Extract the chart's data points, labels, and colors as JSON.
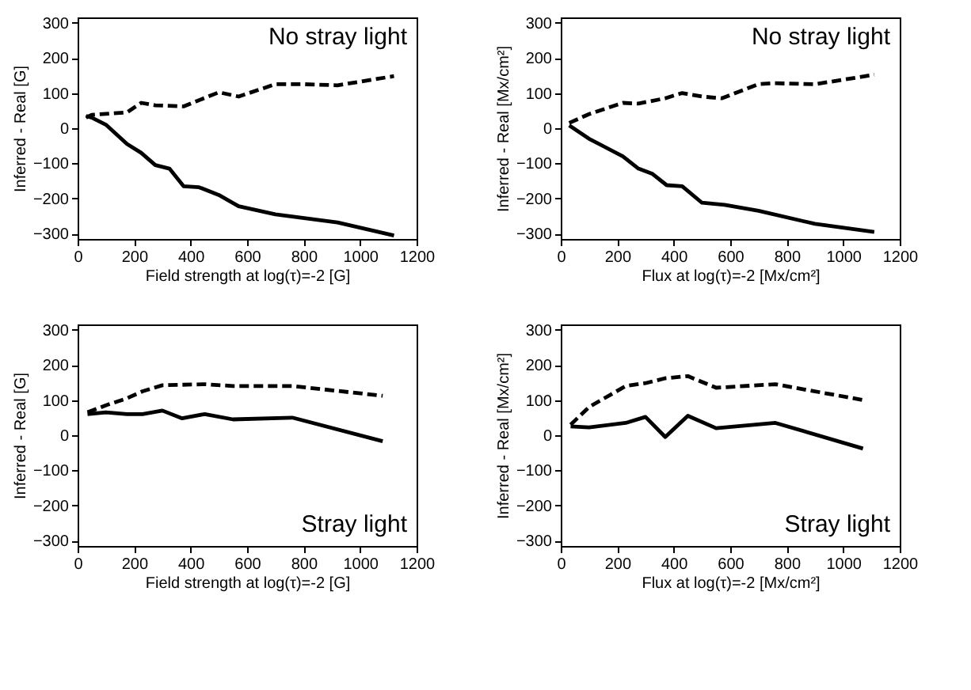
{
  "chart_data": [
    {
      "type": "line",
      "xlabel": "Field strength at log(τ)=-2 [G]",
      "ylabel": "Inferred - Real [G]",
      "annotations": [
        "No stray light"
      ],
      "xlim": [
        0,
        1200
      ],
      "xticks": [
        0,
        200,
        400,
        600,
        800,
        1000,
        1200
      ],
      "ylim": [
        -315,
        315
      ],
      "yticks": [
        -300,
        -200,
        -100,
        0,
        100,
        200,
        300
      ],
      "grid": false,
      "series": [
        {
          "color": "#000000",
          "line_style": "solid",
          "x": [
            30,
            50,
            100,
            175,
            225,
            275,
            325,
            375,
            430,
            500,
            570,
            700,
            920,
            1120
          ],
          "values": [
            35,
            30,
            10,
            -45,
            -70,
            -105,
            -115,
            -165,
            -168,
            -190,
            -222,
            -245,
            -268,
            -305
          ]
        },
        {
          "color": "#000000",
          "line_style": "dashed",
          "x": [
            30,
            50,
            175,
            225,
            275,
            375,
            500,
            570,
            700,
            800,
            920,
            1120
          ],
          "values": [
            30,
            38,
            45,
            72,
            65,
            62,
            102,
            90,
            125,
            125,
            122,
            148
          ]
        }
      ]
    },
    {
      "type": "line",
      "xlabel": "Flux at log(τ)=-2 [Mx/cm²]",
      "ylabel": "Inferred - Real [Mx/cm²]",
      "annotations": [
        "No stray light"
      ],
      "xlim": [
        0,
        1200
      ],
      "xticks": [
        0,
        200,
        400,
        600,
        800,
        1000,
        1200
      ],
      "ylim": [
        -315,
        315
      ],
      "yticks": [
        -300,
        -200,
        -100,
        0,
        100,
        200,
        300
      ],
      "grid": false,
      "series": [
        {
          "color": "#000000",
          "line_style": "solid",
          "x": [
            30,
            100,
            220,
            275,
            325,
            375,
            430,
            500,
            580,
            700,
            900,
            1110
          ],
          "values": [
            8,
            -30,
            -80,
            -115,
            -130,
            -162,
            -165,
            -212,
            -218,
            -235,
            -272,
            -295
          ]
        },
        {
          "color": "#000000",
          "line_style": "dashed",
          "x": [
            30,
            100,
            220,
            275,
            370,
            430,
            500,
            570,
            700,
            750,
            900,
            1110
          ],
          "values": [
            15,
            40,
            72,
            70,
            85,
            100,
            90,
            85,
            125,
            128,
            125,
            152
          ]
        }
      ]
    },
    {
      "type": "line",
      "xlabel": "Field strength at log(τ)=-2 [G]",
      "ylabel": "Inferred - Real [G]",
      "annotations": [
        "Stray light"
      ],
      "xlim": [
        0,
        1200
      ],
      "xticks": [
        0,
        200,
        400,
        600,
        800,
        1000,
        1200
      ],
      "ylim": [
        -315,
        315
      ],
      "yticks": [
        -300,
        -200,
        -100,
        0,
        100,
        200,
        300
      ],
      "grid": false,
      "series": [
        {
          "color": "#000000",
          "line_style": "solid",
          "x": [
            35,
            100,
            175,
            230,
            300,
            370,
            450,
            550,
            760,
            1080
          ],
          "values": [
            60,
            65,
            60,
            60,
            70,
            48,
            60,
            45,
            50,
            -17
          ]
        },
        {
          "color": "#000000",
          "line_style": "dashed",
          "x": [
            35,
            100,
            175,
            230,
            300,
            450,
            550,
            760,
            1080
          ],
          "values": [
            65,
            85,
            105,
            125,
            142,
            145,
            140,
            140,
            112
          ]
        }
      ]
    },
    {
      "type": "line",
      "xlabel": "Flux at log(τ)=-2 [Mx/cm²]",
      "ylabel": "Inferred - Real [Mx/cm²]",
      "annotations": [
        "Stray light"
      ],
      "xlim": [
        0,
        1200
      ],
      "xticks": [
        0,
        200,
        400,
        600,
        800,
        1000,
        1200
      ],
      "ylim": [
        -315,
        315
      ],
      "yticks": [
        -300,
        -200,
        -100,
        0,
        100,
        200,
        300
      ],
      "grid": false,
      "series": [
        {
          "color": "#000000",
          "line_style": "solid",
          "x": [
            35,
            100,
            230,
            300,
            370,
            450,
            550,
            760,
            1070
          ],
          "values": [
            25,
            22,
            35,
            52,
            -5,
            55,
            20,
            35,
            -38
          ]
        },
        {
          "color": "#000000",
          "line_style": "dashed",
          "x": [
            35,
            100,
            230,
            300,
            370,
            450,
            550,
            760,
            1070
          ],
          "values": [
            30,
            80,
            140,
            148,
            162,
            168,
            135,
            145,
            100
          ]
        }
      ]
    }
  ]
}
